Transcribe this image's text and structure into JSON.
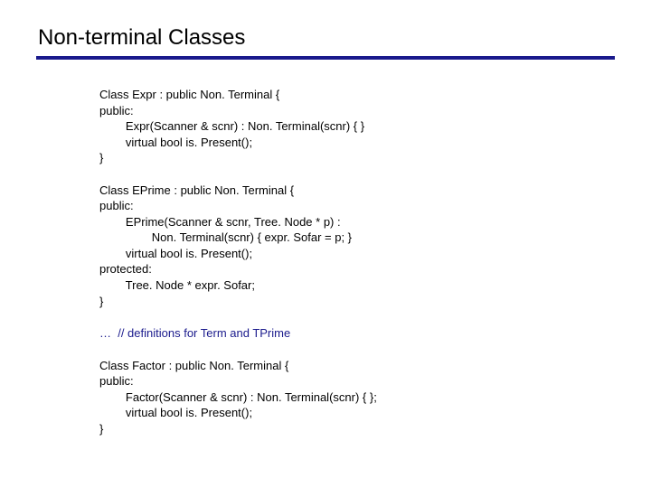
{
  "title": "Non-terminal Classes",
  "rule_color": "#1a1a8c",
  "comment_color": "#1a1a8c",
  "text_color": "#000000",
  "background_color": "#ffffff",
  "title_fontsize": 24,
  "body_fontsize": 13,
  "block1": "Class Expr : public Non. Terminal {\npublic:\n        Expr(Scanner & scnr) : Non. Terminal(scnr) { }\n        virtual bool is. Present();\n}",
  "block2": "Class EPrime : public Non. Terminal {\npublic:\n        EPrime(Scanner & scnr, Tree. Node * p) :\n                Non. Terminal(scnr) { expr. Sofar = p; }\n        virtual bool is. Present();\nprotected:\n        Tree. Node * expr. Sofar;\n}",
  "comment": "…  // definitions for Term and TPrime",
  "block3": "Class Factor : public Non. Terminal {\npublic:\n        Factor(Scanner & scnr) : Non. Terminal(scnr) { };\n        virtual bool is. Present();\n}"
}
